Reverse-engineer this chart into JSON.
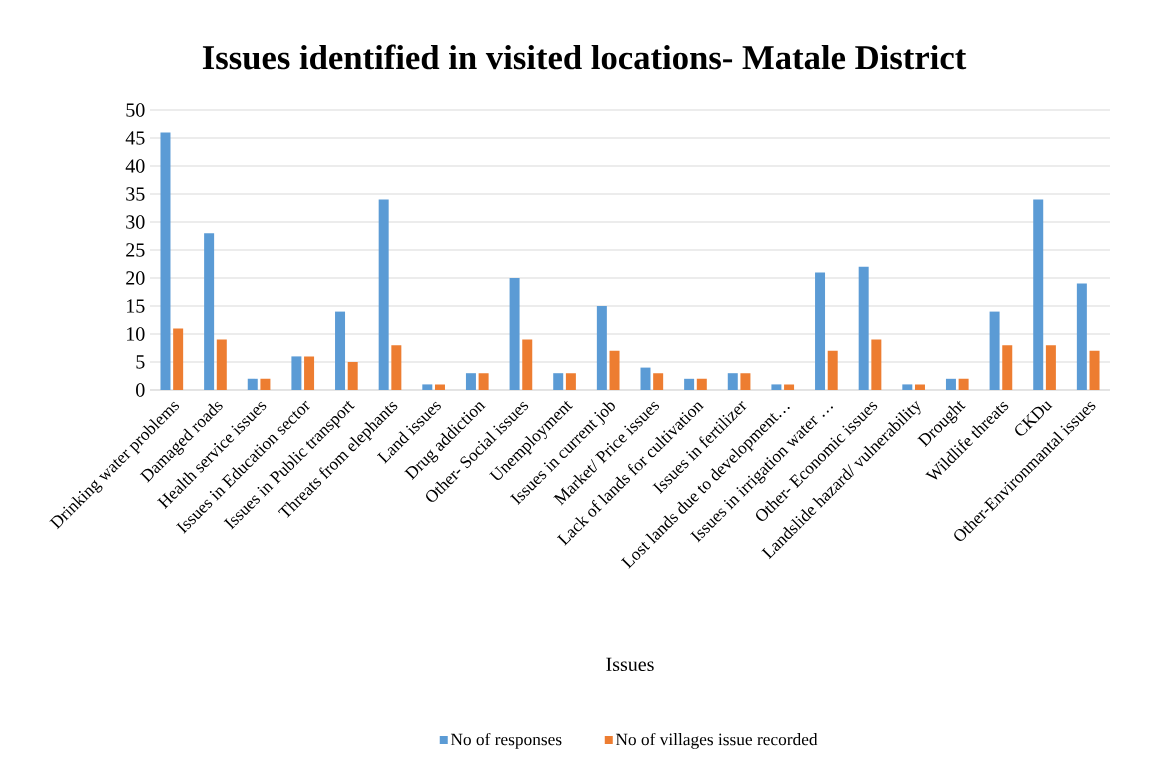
{
  "chart_data": {
    "type": "bar",
    "title": "Issues identified in visited locations- Matale District",
    "xlabel": "Issues",
    "categories": [
      "Drinking water problems",
      "Damaged roads",
      "Health service issues",
      "Issues in Education sector",
      "Issues in Public transport",
      "Threats from elephants",
      "Land issues",
      "Drug addiction",
      "Other- Social issues",
      "Unemployment",
      "Issues in current job",
      "Market/ Price issues",
      "Lack of lands for cultivation",
      "Issues in fertilizer",
      "Lost lands due to development…",
      "Issues in irrigation water …",
      "Other- Economic issues",
      "Landslide hazard/ vulnerability",
      "Drought",
      "Wildlife threats",
      "CKDu",
      "Other-Environmantal issues"
    ],
    "series": [
      {
        "name": "No of responses",
        "color": "#5b9bd5",
        "values": [
          46,
          28,
          2,
          6,
          14,
          34,
          1,
          3,
          20,
          3,
          15,
          4,
          2,
          3,
          1,
          21,
          22,
          1,
          2,
          14,
          34,
          19
        ]
      },
      {
        "name": "No of villages issue recorded",
        "color": "#ed7d31",
        "values": [
          11,
          9,
          2,
          6,
          5,
          8,
          1,
          3,
          9,
          3,
          7,
          3,
          2,
          3,
          1,
          7,
          9,
          1,
          2,
          8,
          8,
          7
        ]
      }
    ],
    "ylim": [
      0,
      50
    ],
    "yticks": [
      0,
      5,
      10,
      15,
      20,
      25,
      30,
      35,
      40,
      45,
      50
    ],
    "grid": "y",
    "legend": "bottom"
  }
}
